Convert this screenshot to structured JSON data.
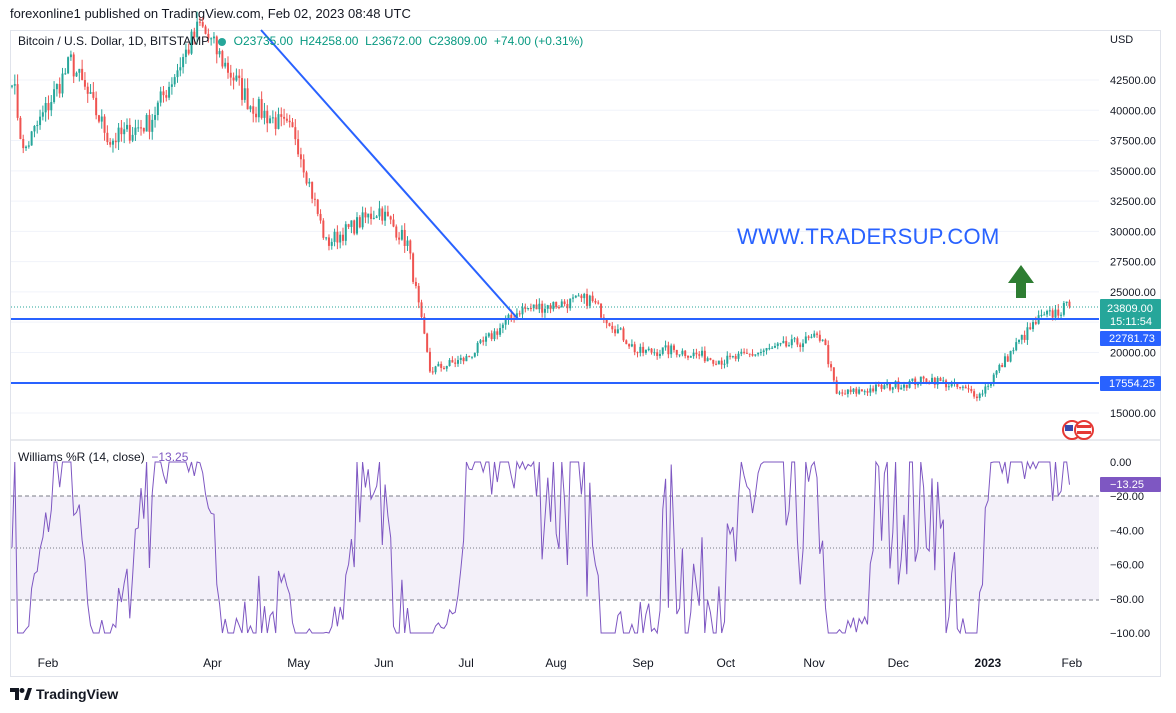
{
  "header": {
    "publish_text": "forexonline1 published on TradingView.com, Feb 02, 2023 08:48 UTC"
  },
  "legend": {
    "symbol": "Bitcoin / U.S. Dollar, 1D, BITSTAMP",
    "open": "O23735.00",
    "high": "H24258.00",
    "low": "L23672.00",
    "close": "C23809.00",
    "change": "+74.00 (+0.31%)"
  },
  "watermark": "WWW.TRADERSUP.COM",
  "price_axis": {
    "currency": "USD",
    "ticks": [
      "42500.00",
      "40000.00",
      "37500.00",
      "35000.00",
      "32500.00",
      "30000.00",
      "27500.00",
      "25000.00",
      "20000.00",
      "15000.00"
    ],
    "last_price": "23809.00",
    "countdown": "15:11:54",
    "level_high": "22781.73",
    "level_low": "17554.25"
  },
  "indicator": {
    "title": "Williams %R (14, close)",
    "value": "−13.25",
    "ticks": [
      "0.00",
      "−20.00",
      "−40.00",
      "−60.00",
      "−80.00",
      "−100.00"
    ],
    "value_label": "−13.25"
  },
  "time_axis": [
    "Feb",
    "Apr",
    "May",
    "Jun",
    "Jul",
    "Aug",
    "Sep",
    "Oct",
    "Nov",
    "Dec",
    "2023",
    "Feb"
  ],
  "footer": {
    "brand": "TradingView"
  },
  "colors": {
    "up": "#26a69a",
    "down": "#ef5350",
    "line": "#2962ff",
    "wr": "#7e57c2",
    "arrow": "#2e7d32"
  },
  "chart_data": {
    "type": "candlestick",
    "symbol": "BTCUSD",
    "timeframe": "1D",
    "ylim": [
      13000,
      46000
    ],
    "approx_close_path": [
      {
        "date": "2022-01-20",
        "close": 43000
      },
      {
        "date": "2022-01-24",
        "close": 36500
      },
      {
        "date": "2022-02-10",
        "close": 44000
      },
      {
        "date": "2022-02-24",
        "close": 37500
      },
      {
        "date": "2022-03-10",
        "close": 39000
      },
      {
        "date": "2022-03-28",
        "close": 47000
      },
      {
        "date": "2022-04-15",
        "close": 40500
      },
      {
        "date": "2022-05-01",
        "close": 38000
      },
      {
        "date": "2022-05-12",
        "close": 29000
      },
      {
        "date": "2022-05-31",
        "close": 31800
      },
      {
        "date": "2022-06-10",
        "close": 29000
      },
      {
        "date": "2022-06-18",
        "close": 18500
      },
      {
        "date": "2022-07-01",
        "close": 19500
      },
      {
        "date": "2022-07-20",
        "close": 23500
      },
      {
        "date": "2022-08-14",
        "close": 24400
      },
      {
        "date": "2022-08-31",
        "close": 20000
      },
      {
        "date": "2022-09-13",
        "close": 20200
      },
      {
        "date": "2022-10-01",
        "close": 19300
      },
      {
        "date": "2022-11-05",
        "close": 21300
      },
      {
        "date": "2022-11-10",
        "close": 16500
      },
      {
        "date": "2022-12-14",
        "close": 17800
      },
      {
        "date": "2022-12-31",
        "close": 16500
      },
      {
        "date": "2023-01-14",
        "close": 20900
      },
      {
        "date": "2023-01-21",
        "close": 22700
      },
      {
        "date": "2023-02-01",
        "close": 23809
      }
    ],
    "horizontal_levels": [
      22781.73,
      17554.25
    ],
    "trendline": [
      {
        "date": "2022-03-30",
        "price": 46500
      },
      {
        "date": "2022-07-08",
        "price": 22781.73
      }
    ],
    "indicator": {
      "name": "Williams %R",
      "period": 14,
      "last": -13.25,
      "ylim": [
        -100,
        0
      ],
      "bands": [
        -20,
        -50,
        -80
      ]
    }
  }
}
